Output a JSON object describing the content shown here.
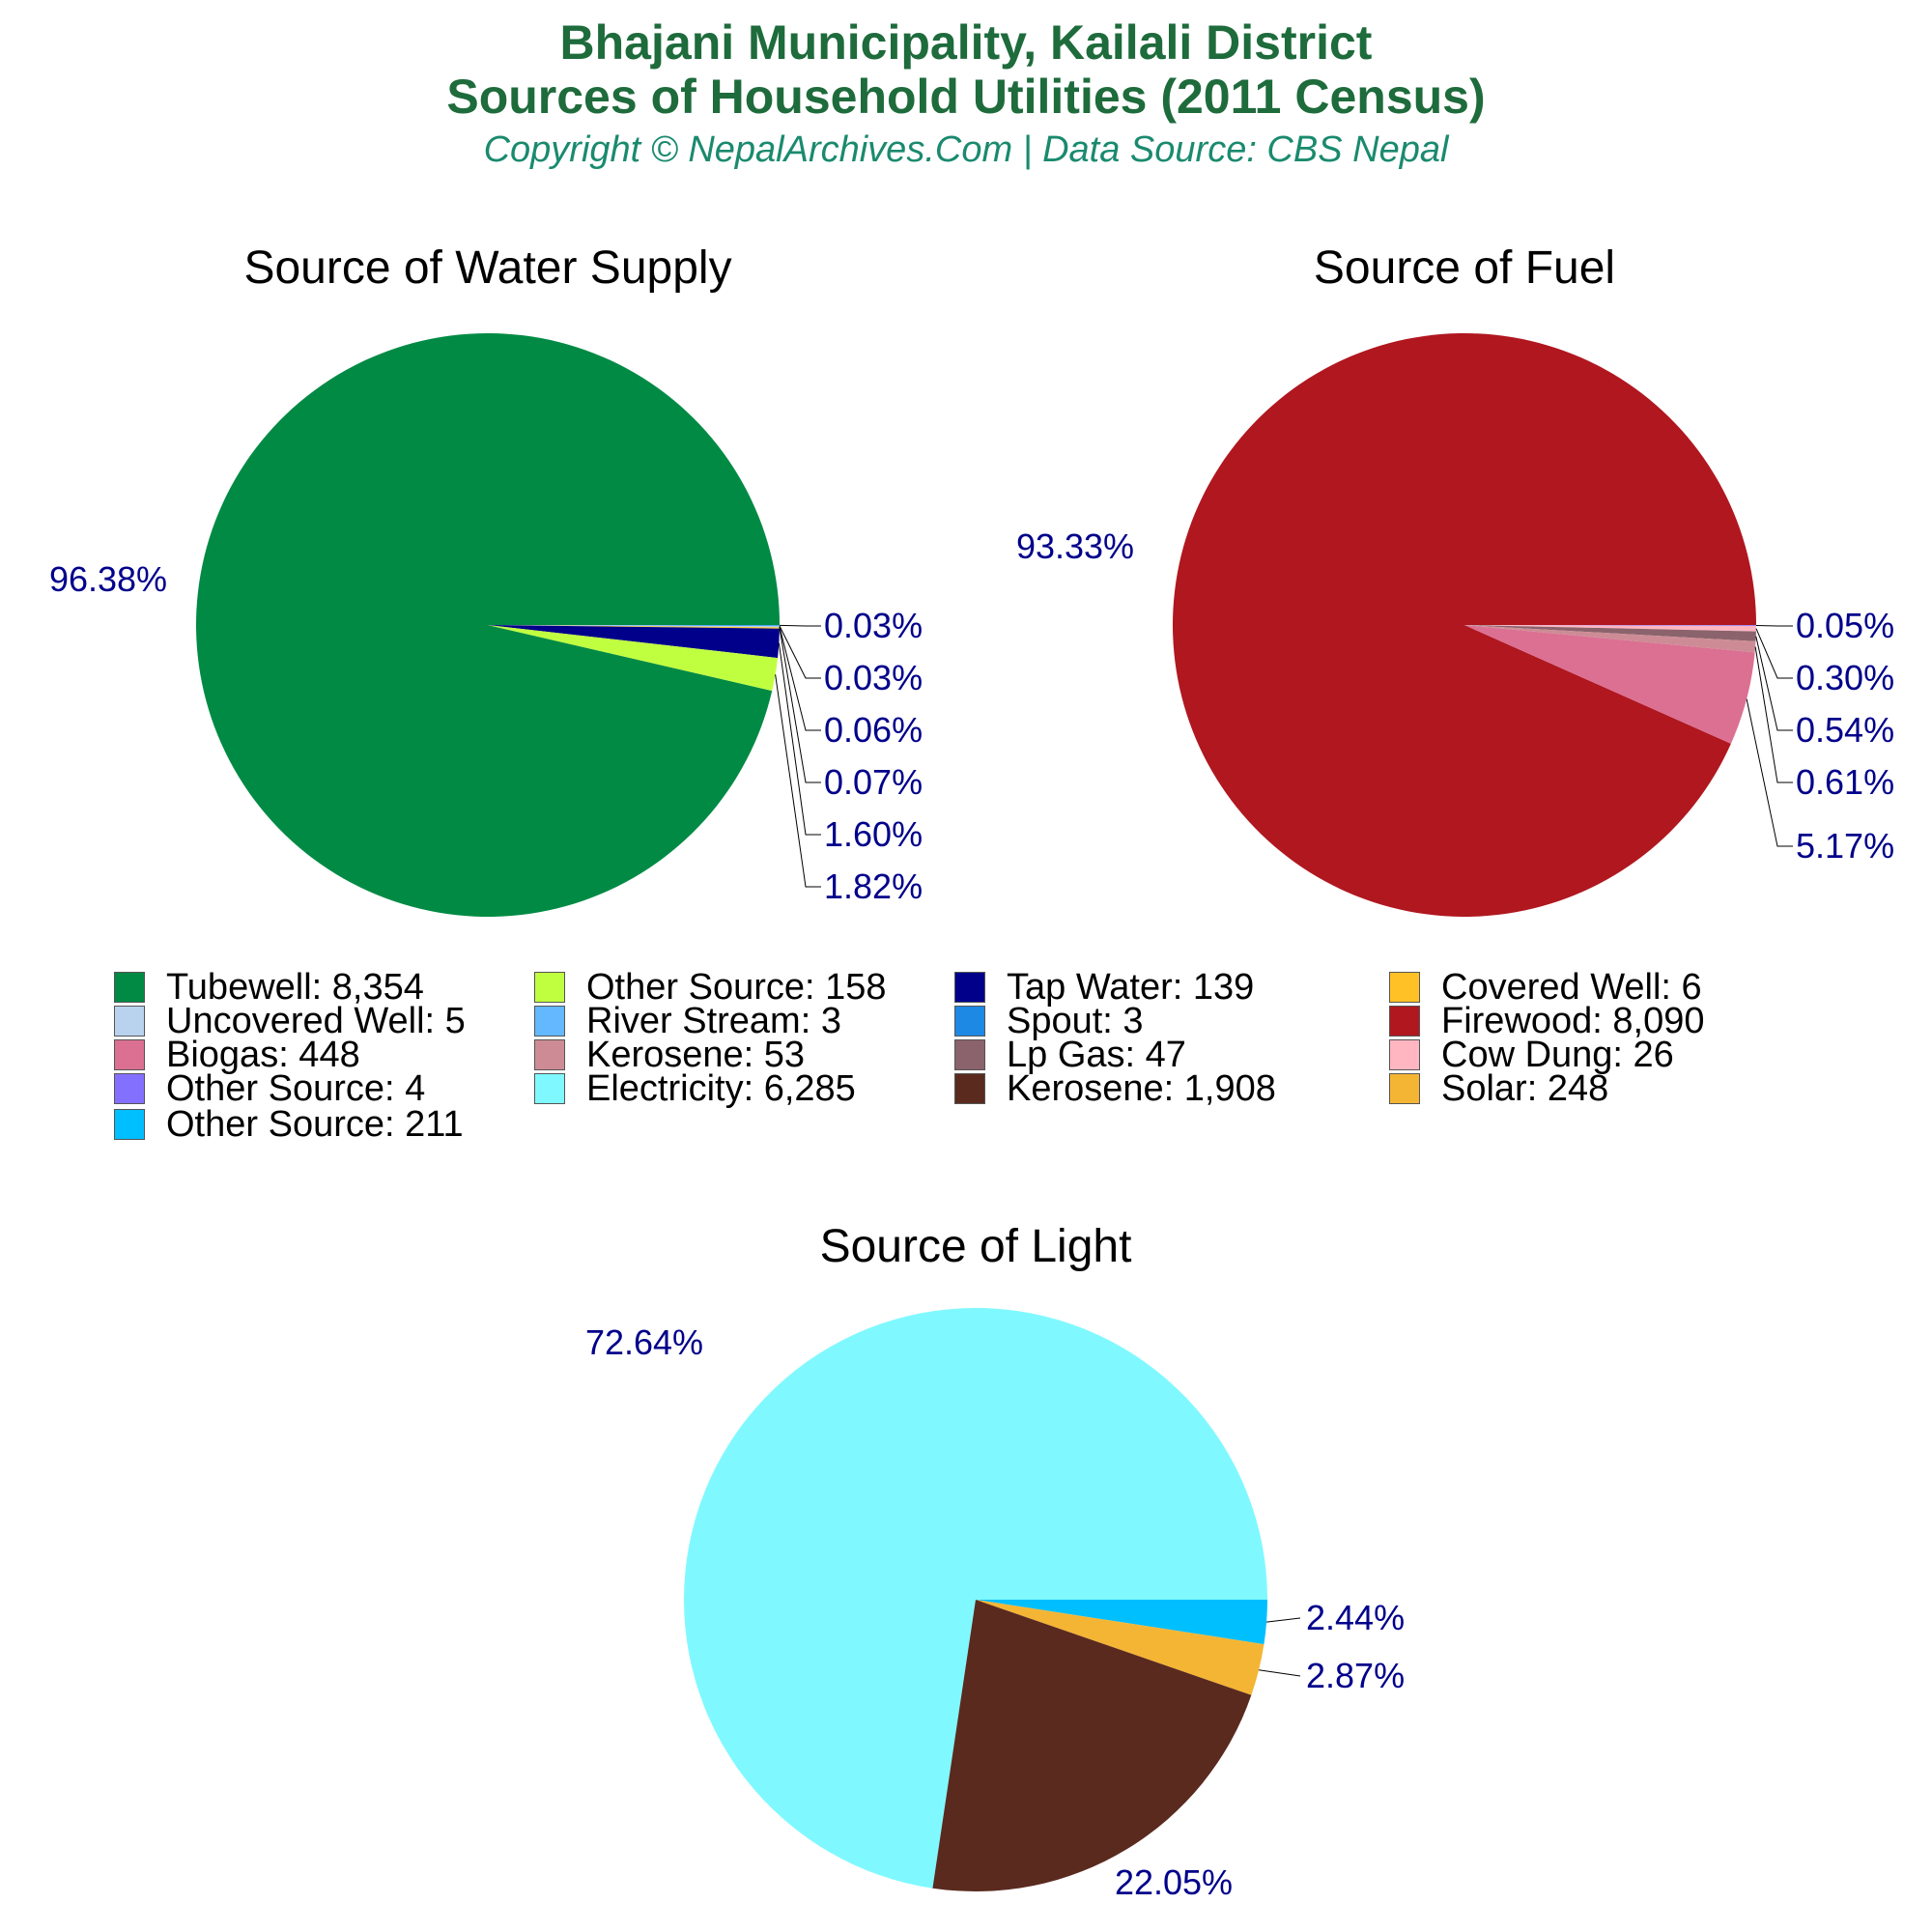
{
  "header": {
    "title_line1": "Bhajani Municipality, Kailali District",
    "title_line2": "Sources of Household Utilities (2011 Census)",
    "subtitle": "Copyright © NepalArchives.Com | Data Source: CBS Nepal"
  },
  "colors": {
    "title": "#1e6b3c",
    "subtitle": "#1a8a6e",
    "percent_label": "#00008b"
  },
  "chart_data": [
    {
      "type": "pie",
      "title": "Source of Water Supply",
      "slices": [
        {
          "label": "Tubewell",
          "value": 8354,
          "percent_text": "96.38%",
          "color": "#008a44"
        },
        {
          "label": "Other Source",
          "value": 158,
          "percent_text": "1.82%",
          "color": "#c0ff40"
        },
        {
          "label": "Tap Water",
          "value": 139,
          "percent_text": "1.60%",
          "color": "#00008b"
        },
        {
          "label": "Covered Well",
          "value": 6,
          "percent_text": "0.07%",
          "color": "#ffc125"
        },
        {
          "label": "Uncovered Well",
          "value": 5,
          "percent_text": "0.06%",
          "color": "#b9d3ee"
        },
        {
          "label": "River Stream",
          "value": 3,
          "percent_text": "0.03%",
          "color": "#63b8ff"
        },
        {
          "label": "Spout",
          "value": 3,
          "percent_text": "0.03%",
          "color": "#1e88e5"
        }
      ]
    },
    {
      "type": "pie",
      "title": "Source of Fuel",
      "slices": [
        {
          "label": "Firewood",
          "value": 8090,
          "percent_text": "93.33%",
          "color": "#b0171f"
        },
        {
          "label": "Biogas",
          "value": 448,
          "percent_text": "5.17%",
          "color": "#db7093"
        },
        {
          "label": "Kerosene",
          "value": 53,
          "percent_text": "0.61%",
          "color": "#cd8c95"
        },
        {
          "label": "Lp Gas",
          "value": 47,
          "percent_text": "0.54%",
          "color": "#8b636c"
        },
        {
          "label": "Cow Dung",
          "value": 26,
          "percent_text": "0.30%",
          "color": "#ffb6c1"
        },
        {
          "label": "Other Source",
          "value": 4,
          "percent_text": "0.05%",
          "color": "#8470ff"
        }
      ]
    },
    {
      "type": "pie",
      "title": "Source of Light",
      "slices": [
        {
          "label": "Electricity",
          "value": 6285,
          "percent_text": "72.64%",
          "color": "#7ff9ff"
        },
        {
          "label": "Kerosene",
          "value": 1908,
          "percent_text": "22.05%",
          "color": "#5a2a1f"
        },
        {
          "label": "Solar",
          "value": 248,
          "percent_text": "2.87%",
          "color": "#f5b534"
        },
        {
          "label": "Other Source",
          "value": 211,
          "percent_text": "2.44%",
          "color": "#00bfff"
        }
      ]
    }
  ],
  "legend": [
    {
      "text": "Tubewell: 8,354",
      "color": "#008a44"
    },
    {
      "text": "Other Source: 158",
      "color": "#c0ff40"
    },
    {
      "text": "Tap Water: 139",
      "color": "#00008b"
    },
    {
      "text": "Covered Well: 6",
      "color": "#ffc125"
    },
    {
      "text": "Uncovered Well: 5",
      "color": "#b9d3ee"
    },
    {
      "text": "River Stream: 3",
      "color": "#63b8ff"
    },
    {
      "text": "Spout: 3",
      "color": "#1e88e5"
    },
    {
      "text": "Firewood: 8,090",
      "color": "#b0171f"
    },
    {
      "text": "Biogas: 448",
      "color": "#db7093"
    },
    {
      "text": "Kerosene: 53",
      "color": "#cd8c95"
    },
    {
      "text": "Lp Gas: 47",
      "color": "#8b636c"
    },
    {
      "text": "Cow Dung: 26",
      "color": "#ffb6c1"
    },
    {
      "text": "Other Source: 4",
      "color": "#8470ff"
    },
    {
      "text": "Electricity: 6,285",
      "color": "#7ff9ff"
    },
    {
      "text": "Kerosene: 1,908",
      "color": "#5a2a1f"
    },
    {
      "text": "Solar: 248",
      "color": "#f5b534"
    },
    {
      "text": "Other Source: 211",
      "color": "#00bfff"
    }
  ]
}
